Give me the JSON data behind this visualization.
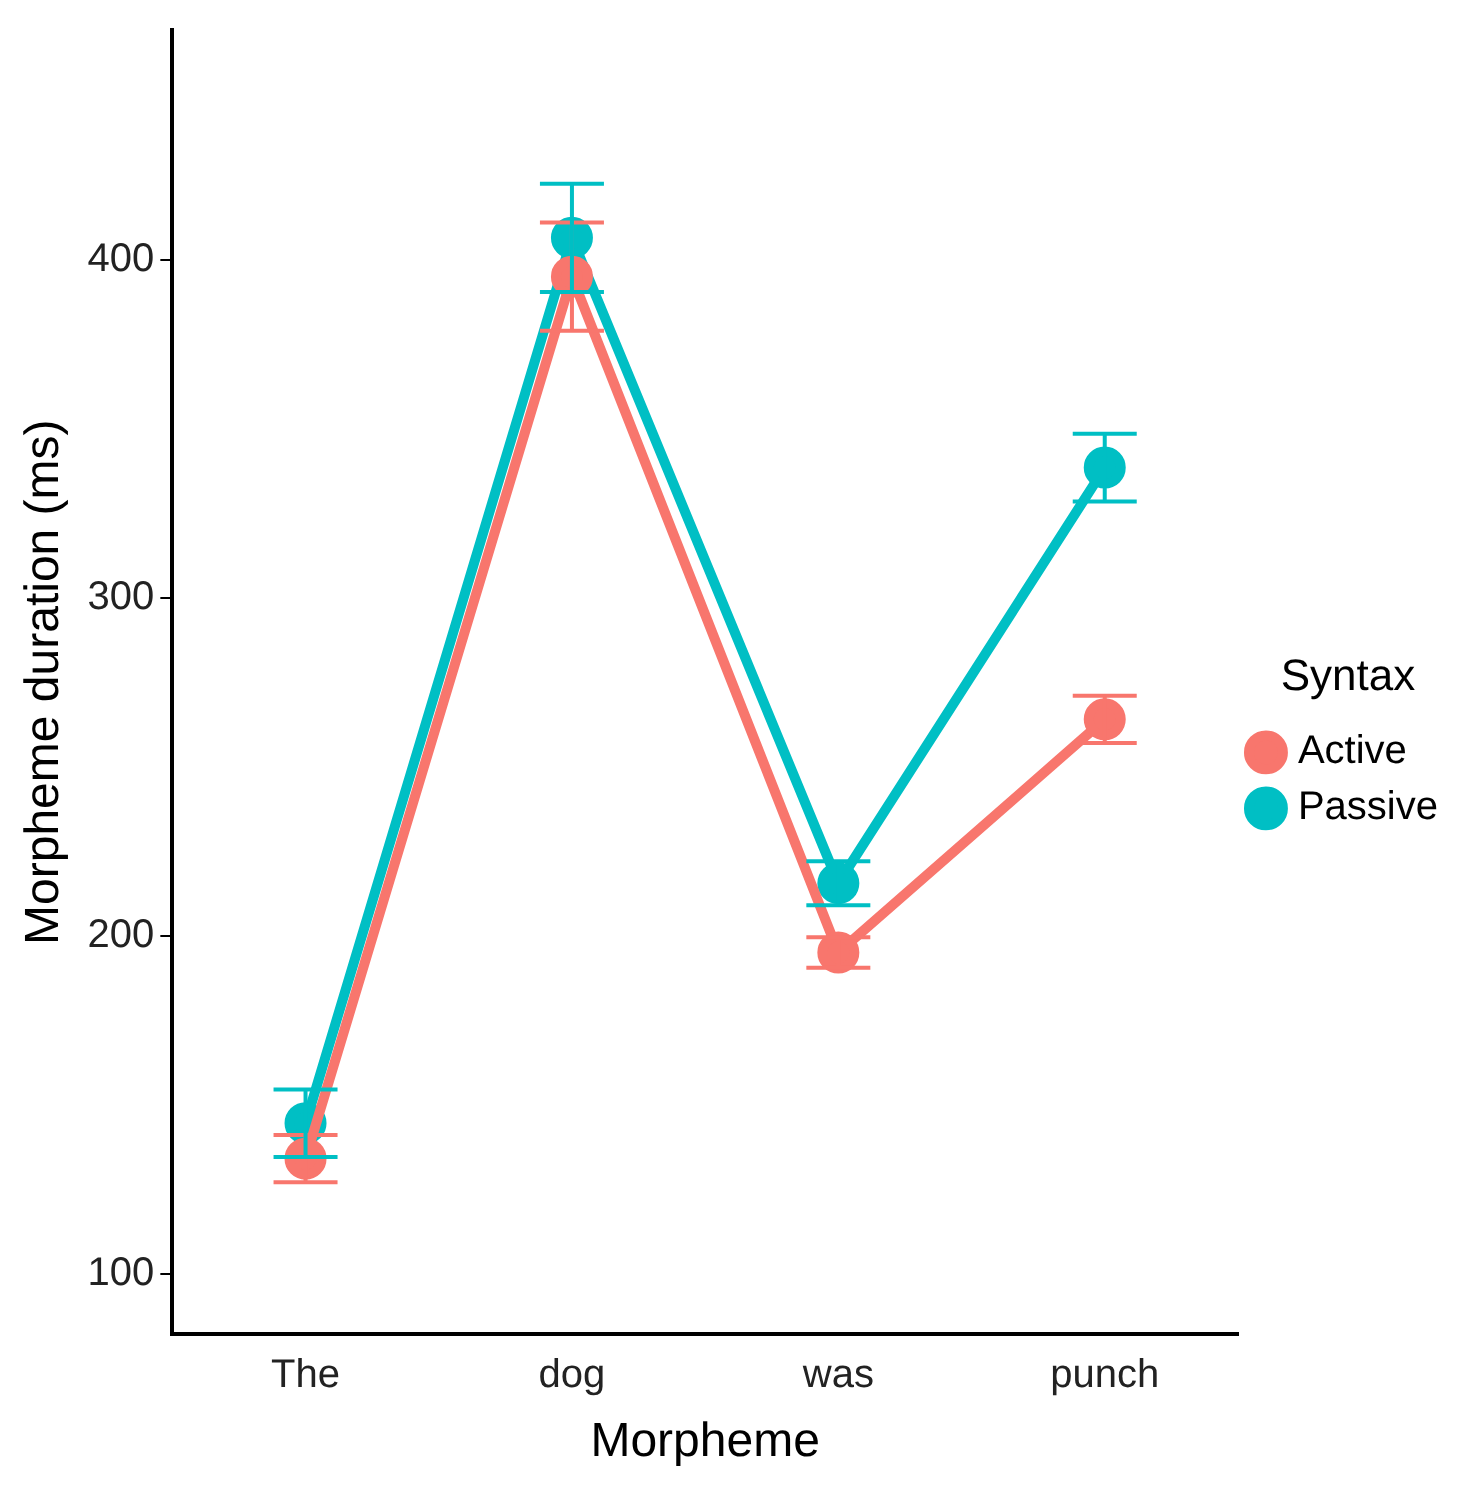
{
  "chart_data": {
    "type": "line",
    "xlabel": "Morpheme",
    "ylabel": "Morpheme duration (ms)",
    "legend_title": "Syntax",
    "categories": [
      "The",
      "dog",
      "was",
      "punch"
    ],
    "series": [
      {
        "name": "Active",
        "color": "#f8766d",
        "values": [
          134,
          395,
          195,
          264
        ],
        "errors": [
          7,
          16,
          4.5,
          7
        ]
      },
      {
        "name": "Passive",
        "color": "#00bfc4",
        "values": [
          144.5,
          406.5,
          215.5,
          338.5
        ],
        "errors": [
          10,
          16,
          6.5,
          10
        ]
      }
    ],
    "ylim": [
      82,
      468
    ],
    "yticks": [
      100,
      200,
      300,
      400
    ],
    "grid": false,
    "legend": "right",
    "marker": "circle",
    "line_style": "solid"
  }
}
